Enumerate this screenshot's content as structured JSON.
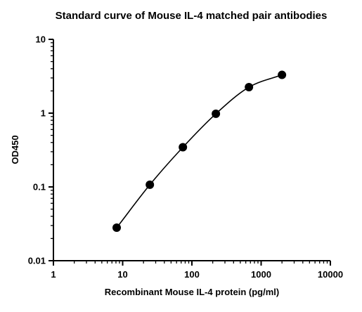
{
  "chart_data": {
    "type": "scatter",
    "title": "Standard curve of Mouse IL-4 matched pair antibodies",
    "xlabel": "Recombinant Mouse IL-4 protein (pg/ml)",
    "ylabel": "OD450",
    "x_scale": "log",
    "y_scale": "log",
    "xlim": [
      1,
      10000
    ],
    "ylim": [
      0.01,
      10
    ],
    "x_ticks": [
      "1",
      "10",
      "100",
      "1000",
      "10000"
    ],
    "y_ticks": [
      "0.01",
      "0.1",
      "1",
      "10"
    ],
    "grid": false,
    "legend": "none",
    "fit_curve": true,
    "marker_color": "#000000",
    "series": [
      {
        "x": [
          8.2,
          24.7,
          74.1,
          222,
          667,
          2000
        ],
        "y": [
          0.028,
          0.107,
          0.345,
          0.98,
          2.25,
          3.3
        ]
      }
    ]
  }
}
